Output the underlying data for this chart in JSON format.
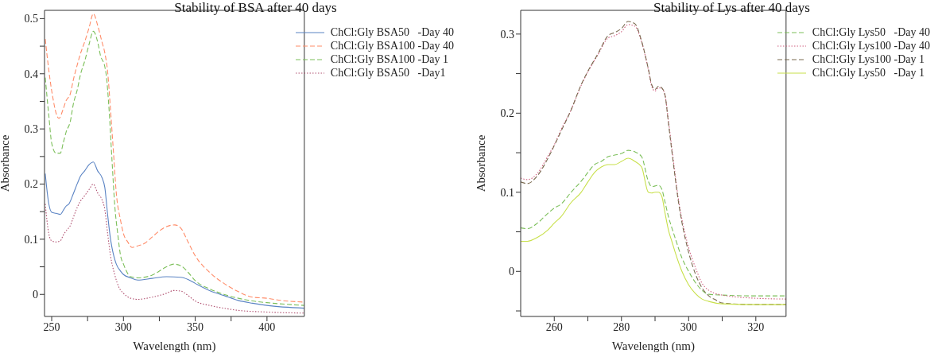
{
  "chart_data": [
    {
      "type": "line",
      "title": "Stability of BSA after 40 days",
      "xlabel": "Wavelength (nm)",
      "ylabel": "Absorbance",
      "xlim": [
        245,
        426
      ],
      "ylim": [
        -0.04,
        0.515
      ],
      "xticks": [
        250,
        {
          "value": 275,
          "label": null
        },
        300,
        {
          "value": 325,
          "label": null
        },
        350,
        {
          "value": 375,
          "label": null
        },
        400
      ],
      "yticks": [
        0,
        {
          "value": 0.05,
          "label": null
        },
        0.1,
        {
          "value": 0.15,
          "label": null
        },
        0.2,
        {
          "value": 0.25,
          "label": null
        },
        0.3,
        {
          "value": 0.35,
          "label": null
        },
        0.4,
        {
          "value": 0.45,
          "label": null
        },
        0.5
      ],
      "legend": "top right",
      "grid": false,
      "marker": "none",
      "series": [
        {
          "name": "ChCl:Gly BSA50   -Day 40",
          "color": "#5b84c4",
          "line_style": "solid",
          "x": [
            245.5,
            248,
            250,
            253,
            256,
            258,
            260,
            262,
            265,
            268,
            270,
            273,
            276,
            279,
            282,
            285,
            287,
            289,
            291,
            292,
            295,
            298,
            300,
            305,
            310,
            320,
            330,
            340,
            345,
            350,
            360,
            370,
            380,
            390,
            400,
            426
          ],
          "values": [
            0.219,
            0.164,
            0.149,
            0.147,
            0.145,
            0.152,
            0.16,
            0.164,
            0.182,
            0.202,
            0.214,
            0.224,
            0.235,
            0.24,
            0.224,
            0.212,
            0.194,
            0.144,
            0.1,
            0.085,
            0.055,
            0.042,
            0.036,
            0.03,
            0.026,
            0.029,
            0.032,
            0.031,
            0.027,
            0.02,
            0.007,
            -0.002,
            -0.011,
            -0.016,
            -0.02,
            -0.025
          ]
        },
        {
          "name": "ChCl:Gly BSA100 -Day 40",
          "color": "#ff8c69",
          "line_style": "dashed",
          "x": [
            245.5,
            250,
            255,
            258,
            260,
            263,
            265,
            268,
            270,
            273,
            276,
            279,
            282,
            285,
            287,
            289,
            291,
            293,
            295,
            298,
            300,
            303,
            306,
            310,
            315,
            320,
            325,
            330,
            335.7,
            340,
            345,
            350,
            360,
            370,
            380,
            390,
            400,
            410,
            426
          ],
          "values": [
            0.463,
            0.369,
            0.319,
            0.336,
            0.351,
            0.364,
            0.388,
            0.418,
            0.436,
            0.458,
            0.483,
            0.509,
            0.488,
            0.458,
            0.438,
            0.403,
            0.334,
            0.259,
            0.184,
            0.134,
            0.11,
            0.095,
            0.085,
            0.088,
            0.093,
            0.104,
            0.115,
            0.123,
            0.126,
            0.12,
            0.095,
            0.07,
            0.04,
            0.02,
            0.005,
            -0.005,
            -0.007,
            -0.011,
            -0.014
          ]
        },
        {
          "name": "ChCl:Gly BSA100 -Day 1",
          "color": "#7cbf5a",
          "line_style": "dashed",
          "x": [
            245.5,
            248,
            250,
            253,
            256,
            258,
            260,
            263,
            265,
            268,
            270,
            273,
            276,
            279,
            282,
            284,
            287,
            288,
            290,
            292,
            294,
            296,
            298,
            300,
            305,
            310,
            320,
            330,
            335,
            340,
            345,
            350,
            360,
            370,
            380,
            390,
            400,
            426
          ],
          "values": [
            0.393,
            0.324,
            0.274,
            0.256,
            0.256,
            0.274,
            0.294,
            0.314,
            0.344,
            0.373,
            0.398,
            0.423,
            0.453,
            0.477,
            0.458,
            0.433,
            0.413,
            0.398,
            0.334,
            0.244,
            0.159,
            0.11,
            0.07,
            0.055,
            0.032,
            0.03,
            0.035,
            0.05,
            0.055,
            0.052,
            0.04,
            0.025,
            0.01,
            0,
            -0.007,
            -0.012,
            -0.015,
            -0.02
          ]
        },
        {
          "name": "ChCl:Gly BSA50   -Day1",
          "color": "#b05070",
          "line_style": "dotted",
          "x": [
            245.5,
            248,
            250,
            253,
            256,
            258,
            260,
            263,
            265,
            268,
            270,
            273,
            276,
            279,
            282,
            285,
            287,
            289,
            291,
            294,
            297,
            300,
            305,
            310,
            320,
            330,
            335,
            340,
            345,
            350,
            360,
            370,
            380,
            400,
            426
          ],
          "values": [
            0.164,
            0.11,
            0.097,
            0.095,
            0.097,
            0.107,
            0.115,
            0.125,
            0.139,
            0.159,
            0.169,
            0.179,
            0.19,
            0.2,
            0.184,
            0.172,
            0.154,
            0.11,
            0.07,
            0.035,
            0.012,
            0.002,
            -0.007,
            -0.009,
            -0.005,
            0.002,
            0.007,
            0.006,
            -0.002,
            -0.012,
            -0.02,
            -0.025,
            -0.029,
            -0.032,
            -0.034
          ]
        }
      ]
    },
    {
      "type": "line",
      "title": "Stability of Lys after 40 days",
      "xlabel": "Wavelength (nm)",
      "ylabel": "Absorbance",
      "xlim": [
        250,
        329
      ],
      "ylim": [
        -0.057,
        0.33
      ],
      "xticks": [
        260,
        {
          "value": 270,
          "label": null
        },
        280,
        {
          "value": 290,
          "label": null
        },
        300,
        {
          "value": 310,
          "label": null
        },
        320
      ],
      "yticks": [
        {
          "value": -0.05,
          "label": null
        },
        0,
        {
          "value": 0.05,
          "label": null
        },
        0.1,
        {
          "value": 0.15,
          "label": null
        },
        0.2,
        {
          "value": 0.25,
          "label": null
        },
        0.3
      ],
      "legend": "top right",
      "grid": false,
      "marker": "none",
      "series": [
        {
          "name": "ChCl:Gly Lys50   -Day 40",
          "color": "#7cbf5a",
          "line_style": "dashed",
          "x": [
            250,
            252,
            255,
            258,
            260,
            262,
            265,
            268,
            270,
            272,
            274,
            276,
            278,
            280,
            282,
            284,
            286,
            288,
            289,
            290,
            291,
            292,
            293,
            294,
            295,
            296,
            298,
            300,
            302,
            304,
            306,
            310,
            320,
            329
          ],
          "values": [
            0.055,
            0.054,
            0.061,
            0.073,
            0.08,
            0.085,
            0.1,
            0.114,
            0.125,
            0.135,
            0.139,
            0.145,
            0.147,
            0.149,
            0.153,
            0.151,
            0.145,
            0.114,
            0.107,
            0.108,
            0.109,
            0.104,
            0.087,
            0.069,
            0.055,
            0.042,
            0.017,
            0,
            -0.014,
            -0.024,
            -0.029,
            -0.03,
            -0.031,
            -0.031
          ]
        },
        {
          "name": "ChCl:Gly Lys100 -Day 40",
          "color": "#d06080",
          "line_style": "dotted",
          "x": [
            250,
            252,
            255,
            258,
            260,
            262,
            265,
            268,
            270,
            273,
            276,
            278,
            280,
            282,
            284,
            286,
            288,
            289,
            290,
            291,
            292,
            293,
            294,
            295,
            296,
            297,
            298,
            300,
            302,
            304,
            306,
            308,
            310,
            320,
            329
          ],
          "values": [
            0.118,
            0.116,
            0.124,
            0.145,
            0.16,
            0.179,
            0.204,
            0.235,
            0.252,
            0.274,
            0.295,
            0.298,
            0.303,
            0.312,
            0.31,
            0.29,
            0.255,
            0.234,
            0.228,
            0.232,
            0.231,
            0.222,
            0.19,
            0.156,
            0.122,
            0.09,
            0.066,
            0.03,
            0.005,
            -0.015,
            -0.024,
            -0.028,
            -0.03,
            -0.034,
            -0.035
          ]
        },
        {
          "name": "ChCl:Gly Lys100 -Day 1",
          "color": "#7a6a50",
          "line_style": "dashed",
          "x": [
            250,
            252,
            255,
            258,
            260,
            262,
            265,
            268,
            270,
            273,
            276,
            278,
            280,
            282,
            284,
            286,
            288,
            289,
            290,
            291,
            292,
            293,
            294,
            295,
            296,
            297,
            298,
            300,
            302,
            304,
            306,
            308,
            310,
            320,
            329
          ],
          "values": [
            0.113,
            0.111,
            0.121,
            0.142,
            0.159,
            0.177,
            0.204,
            0.236,
            0.253,
            0.275,
            0.298,
            0.302,
            0.307,
            0.316,
            0.313,
            0.291,
            0.256,
            0.236,
            0.23,
            0.234,
            0.232,
            0.222,
            0.187,
            0.152,
            0.118,
            0.087,
            0.062,
            0.024,
            -0.003,
            -0.021,
            -0.031,
            -0.036,
            -0.04,
            -0.042,
            -0.042
          ]
        },
        {
          "name": "ChCl:Gly Lys50   -Day 1",
          "color": "#c8e04a",
          "line_style": "solid",
          "x": [
            250,
            252,
            255,
            258,
            260,
            262,
            265,
            268,
            270,
            272,
            274,
            276,
            278,
            280,
            282,
            284,
            286,
            288,
            289,
            290,
            291,
            292,
            293,
            294,
            295,
            296,
            298,
            300,
            302,
            304,
            306,
            310,
            320,
            329
          ],
          "values": [
            0.038,
            0.038,
            0.043,
            0.052,
            0.061,
            0.069,
            0.087,
            0.1,
            0.113,
            0.125,
            0.132,
            0.135,
            0.135,
            0.139,
            0.143,
            0.139,
            0.132,
            0.1,
            0.099,
            0.1,
            0.1,
            0.095,
            0.073,
            0.052,
            0.038,
            0.024,
            0,
            -0.017,
            -0.028,
            -0.035,
            -0.038,
            -0.041,
            -0.042,
            -0.042
          ]
        }
      ]
    }
  ]
}
